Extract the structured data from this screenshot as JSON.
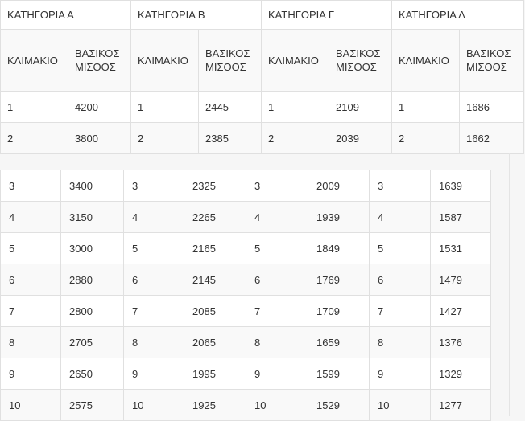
{
  "categories": [
    "ΚΑΤΗΓΟΡΙΑ Α",
    "ΚΑΤΗΓΟΡΙΑ Β",
    "ΚΑΤΗΓΟΡΙΑ Γ",
    "ΚΑΤΗΓΟΡΙΑ Δ"
  ],
  "subheaders": {
    "step": "ΚΛΙΜΑΚΙΟ",
    "salary": "ΒΑΣΙΚΟΣ ΜΙΣΘΟΣ"
  },
  "rows": [
    [
      "1",
      "4200",
      "1",
      "2445",
      "1",
      "2109",
      "1",
      "1686"
    ],
    [
      "2",
      "3800",
      "2",
      "2385",
      "2",
      "2039",
      "2",
      "1662"
    ],
    [
      "3",
      "3400",
      "3",
      "2325",
      "3",
      "2009",
      "3",
      "1639"
    ],
    [
      "4",
      "3150",
      "4",
      "2265",
      "4",
      "1939",
      "4",
      "1587"
    ],
    [
      "5",
      "3000",
      "5",
      "2165",
      "5",
      "1849",
      "5",
      "1531"
    ],
    [
      "6",
      "2880",
      "6",
      "2145",
      "6",
      "1769",
      "6",
      "1479"
    ],
    [
      "7",
      "2800",
      "7",
      "2085",
      "7",
      "1709",
      "7",
      "1427"
    ],
    [
      "8",
      "2705",
      "8",
      "2065",
      "8",
      "1659",
      "8",
      "1376"
    ],
    [
      "9",
      "2650",
      "9",
      "1995",
      "9",
      "1599",
      "9",
      "1329"
    ],
    [
      "10",
      "2575",
      "10",
      "1925",
      "10",
      "1529",
      "10",
      "1277"
    ]
  ]
}
